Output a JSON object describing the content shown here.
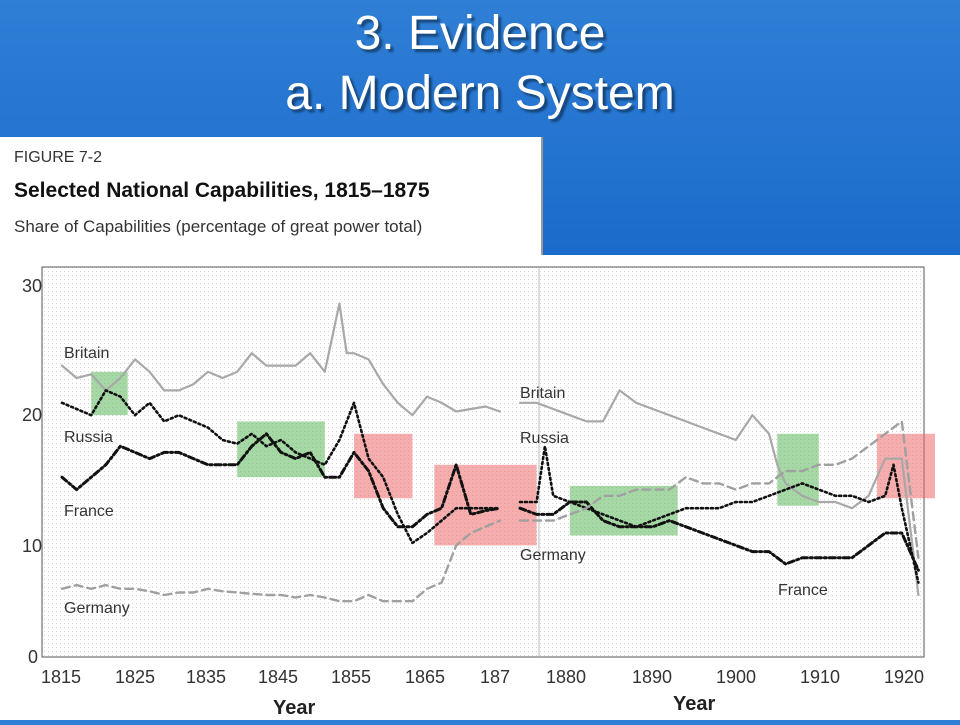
{
  "slide": {
    "title_line1": "3. Evidence",
    "title_line2": "a. Modern System"
  },
  "figure": {
    "label": "FIGURE 7-2",
    "title": "Selected National Capabilities, 1815–1875",
    "subtitle": "Share of Capabilities (percentage of great power total)"
  },
  "colors": {
    "britain": "#a8a8a8",
    "russia": "#111111",
    "france": "#111111",
    "germany": "#a0a0a0",
    "green_box": "#5cb85c",
    "red_box": "#ec6a6a"
  },
  "chart_data": [
    {
      "type": "line",
      "title": "Selected National Capabilities, 1815–1875",
      "ylabel": "Share of Capabilities (percentage of great power total)",
      "xlabel": "Year",
      "xlim": [
        1815,
        1875
      ],
      "ylim": [
        0,
        30
      ],
      "x_ticks": [
        "1815",
        "1825",
        "1835",
        "1845",
        "1855",
        "1865",
        "187"
      ],
      "y_ticks": [
        "30",
        "20",
        "10",
        "0"
      ],
      "series": [
        {
          "name": "Britain",
          "x": [
            1815,
            1817,
            1819,
            1821,
            1823,
            1825,
            1827,
            1829,
            1831,
            1833,
            1835,
            1837,
            1839,
            1841,
            1843,
            1845,
            1847,
            1849,
            1851,
            1853,
            1854,
            1855,
            1857,
            1859,
            1861,
            1863,
            1865,
            1867,
            1869,
            1871,
            1873,
            1875
          ],
          "y": [
            23.5,
            22.5,
            22.8,
            21.5,
            22.5,
            24,
            23,
            21.5,
            21.5,
            22,
            23,
            22.5,
            23,
            24.5,
            23.5,
            23.5,
            23.5,
            24.5,
            23,
            28.5,
            24.5,
            24.5,
            24,
            22,
            20.5,
            19.5,
            21,
            20.5,
            19.8,
            20,
            20.2,
            19.8
          ]
        },
        {
          "name": "Russia",
          "x": [
            1815,
            1817,
            1819,
            1821,
            1823,
            1825,
            1827,
            1829,
            1831,
            1833,
            1835,
            1837,
            1839,
            1841,
            1843,
            1845,
            1847,
            1849,
            1851,
            1853,
            1855,
            1857,
            1859,
            1861,
            1863,
            1865,
            1867,
            1869,
            1871,
            1873,
            1875
          ],
          "y": [
            20.5,
            20,
            19.5,
            21.5,
            21,
            19.5,
            20.5,
            19,
            19.5,
            19,
            18.5,
            17.5,
            17.2,
            18,
            17,
            17.5,
            16.5,
            16,
            15.5,
            17.5,
            20.5,
            16,
            14.5,
            11.5,
            9.2,
            10,
            11,
            12,
            12,
            12,
            12
          ]
        },
        {
          "name": "France",
          "x": [
            1815,
            1817,
            1819,
            1821,
            1823,
            1825,
            1827,
            1829,
            1831,
            1833,
            1835,
            1837,
            1839,
            1841,
            1843,
            1845,
            1847,
            1849,
            1851,
            1853,
            1855,
            1857,
            1859,
            1861,
            1863,
            1865,
            1867,
            1869,
            1871,
            1873,
            1875
          ],
          "y": [
            14.5,
            13.5,
            14.5,
            15.5,
            17,
            16.5,
            16,
            16.5,
            16.5,
            16,
            15.5,
            15.5,
            15.5,
            17,
            18,
            16.5,
            16,
            16.5,
            14.5,
            14.5,
            16.5,
            15,
            12,
            10.5,
            10.5,
            11.5,
            12,
            15.5,
            11.5,
            11.8,
            12
          ]
        },
        {
          "name": "Germany",
          "x": [
            1815,
            1817,
            1819,
            1821,
            1823,
            1825,
            1827,
            1829,
            1831,
            1833,
            1835,
            1837,
            1839,
            1841,
            1843,
            1845,
            1847,
            1849,
            1851,
            1853,
            1855,
            1857,
            1859,
            1861,
            1863,
            1865,
            1867,
            1869,
            1871,
            1873,
            1875
          ],
          "y": [
            5.5,
            5.8,
            5.5,
            5.8,
            5.5,
            5.5,
            5.3,
            5,
            5.2,
            5.2,
            5.5,
            5.3,
            5.2,
            5.1,
            5,
            5,
            4.8,
            5,
            4.8,
            4.5,
            4.5,
            5,
            4.5,
            4.5,
            4.5,
            5.5,
            6,
            9,
            10,
            10.5,
            11
          ]
        }
      ]
    },
    {
      "type": "line",
      "xlabel": "Year",
      "xlim": [
        1875,
        1925
      ],
      "ylim": [
        0,
        30
      ],
      "x_ticks": [
        "1880",
        "1890",
        "1900",
        "1910",
        "1920"
      ],
      "series": [
        {
          "name": "Britain",
          "x": [
            1875,
            1877,
            1879,
            1881,
            1883,
            1885,
            1887,
            1889,
            1891,
            1893,
            1895,
            1897,
            1899,
            1901,
            1903,
            1905,
            1906,
            1907,
            1908,
            1909,
            1911,
            1913,
            1915,
            1917,
            1919,
            1921,
            1923
          ],
          "y": [
            20.5,
            20.5,
            20,
            19.5,
            19,
            19,
            21.5,
            20.5,
            20,
            19.5,
            19,
            18.5,
            18,
            17.5,
            19.5,
            18,
            15.5,
            14,
            13.5,
            13,
            12.5,
            12.5,
            12,
            13,
            16,
            16,
            5
          ]
        },
        {
          "name": "Russia",
          "x": [
            1875,
            1877,
            1878,
            1879,
            1881,
            1883,
            1885,
            1887,
            1889,
            1891,
            1893,
            1895,
            1897,
            1899,
            1901,
            1903,
            1905,
            1907,
            1909,
            1911,
            1913,
            1915,
            1917,
            1919,
            1920,
            1921,
            1923
          ],
          "y": [
            12.5,
            12.5,
            17,
            13,
            12.5,
            12,
            11.5,
            11,
            10.5,
            11,
            11.5,
            12,
            12,
            12,
            12.5,
            12.5,
            13,
            13.5,
            14,
            13.5,
            13,
            13,
            12.5,
            13,
            15.5,
            12,
            6
          ]
        },
        {
          "name": "France",
          "x": [
            1875,
            1877,
            1879,
            1881,
            1883,
            1885,
            1887,
            1889,
            1891,
            1893,
            1895,
            1897,
            1899,
            1901,
            1903,
            1905,
            1907,
            1909,
            1911,
            1913,
            1915,
            1917,
            1919,
            1921,
            1923
          ],
          "y": [
            12,
            11.5,
            11.5,
            12.5,
            12.5,
            11,
            10.5,
            10.5,
            10.5,
            11,
            10.5,
            10,
            9.5,
            9,
            8.5,
            8.5,
            7.5,
            8,
            8,
            8,
            8,
            9,
            10,
            10,
            7
          ]
        },
        {
          "name": "Germany",
          "x": [
            1875,
            1877,
            1879,
            1881,
            1883,
            1885,
            1887,
            1889,
            1891,
            1893,
            1895,
            1897,
            1899,
            1901,
            1903,
            1905,
            1907,
            1909,
            1911,
            1913,
            1915,
            1917,
            1919,
            1921,
            1923
          ],
          "y": [
            11,
            11,
            11,
            11.5,
            12,
            13,
            13,
            13.5,
            13.5,
            13.5,
            14.5,
            14,
            14,
            13.5,
            14,
            14,
            15,
            15,
            15.5,
            15.5,
            16,
            17,
            18,
            19,
            8
          ]
        }
      ],
      "annotations": [
        "Britain",
        "Russia",
        "Germany",
        "France"
      ]
    }
  ],
  "axis": {
    "y_ticks": [
      "30",
      "20",
      "10",
      "0"
    ],
    "x_ticks_left": [
      "1815",
      "1825",
      "1835",
      "1845",
      "1855",
      "1865",
      "187"
    ],
    "x_ticks_right": [
      "1880",
      "1890",
      "1900",
      "1910",
      "1920"
    ],
    "xlabel_left": "Year",
    "xlabel_right": "Year"
  },
  "labels": {
    "britain_left": "Britain",
    "russia_left": "Russia",
    "france_left": "France",
    "germany_left": "Germany",
    "britain_right": "Britain",
    "russia_right": "Russia",
    "germany_right": "Germany",
    "france_right": "France"
  },
  "highlight_boxes": [
    {
      "color": "green",
      "x_from": 1819,
      "x_to": 1824,
      "y_from": 19.5,
      "y_to": 23
    },
    {
      "color": "green",
      "x_from": 1839,
      "x_to": 1851,
      "y_from": 14.5,
      "y_to": 19
    },
    {
      "color": "red",
      "x_from": 1855,
      "x_to": 1863,
      "y_from": 12.8,
      "y_to": 18
    },
    {
      "color": "red",
      "x_from": 1866,
      "x_to": 1877,
      "y_from": 9,
      "y_to": 15.5
    },
    {
      "color": "green",
      "x_from": 1881,
      "x_to": 1894,
      "y_from": 9.8,
      "y_to": 13.8
    },
    {
      "color": "green",
      "x_from": 1906,
      "x_to": 1911,
      "y_from": 12.2,
      "y_to": 18
    },
    {
      "color": "red",
      "x_from": 1918,
      "x_to": 1925,
      "y_from": 12.8,
      "y_to": 18
    }
  ]
}
